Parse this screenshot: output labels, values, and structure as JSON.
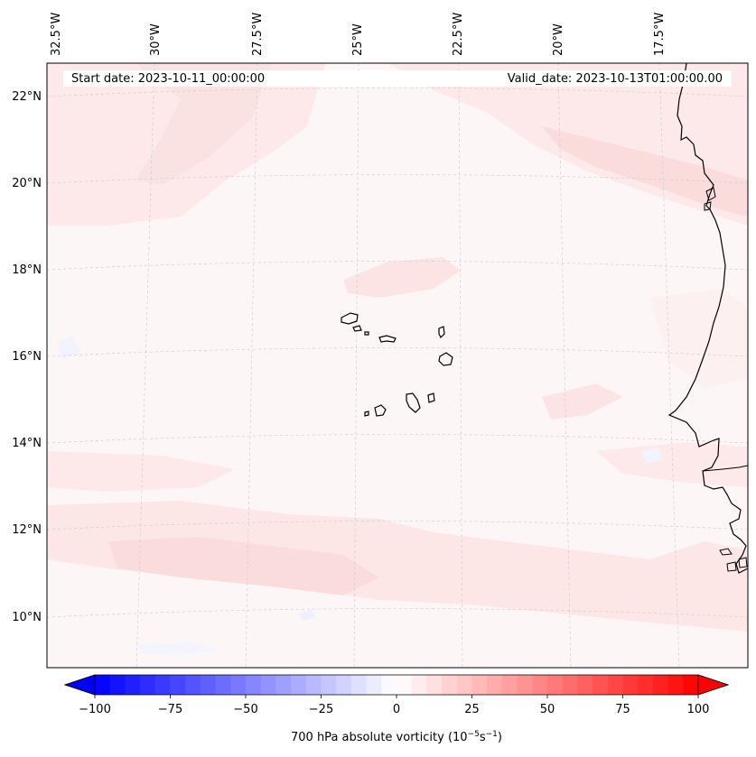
{
  "header": {
    "start_date": "Start date: 2023-10-11_00:00:00",
    "valid_date": "Valid_date: 2023-10-13T01:00:00.00"
  },
  "longitude_labels": [
    "32.5°W",
    "30°W",
    "27.5°W",
    "25°W",
    "22.5°W",
    "20°W",
    "17.5°W"
  ],
  "latitude_labels": [
    "22°N",
    "20°N",
    "18°N",
    "16°N",
    "14°N",
    "12°N",
    "10°N"
  ],
  "colorbar": {
    "label_main": "700 hPa absolute vorticity (10",
    "label_exp1": "−5",
    "label_mid": "s",
    "label_exp2": "−1",
    "label_end": ")",
    "min": -100,
    "max": 100,
    "ticks": [
      "−100",
      "−75",
      "−50",
      "−25",
      "0",
      "25",
      "50",
      "75",
      "100"
    ],
    "colors": {
      "negative": "#0000ff",
      "neutral": "#ffffff",
      "positive": "#ff0000"
    }
  }
}
